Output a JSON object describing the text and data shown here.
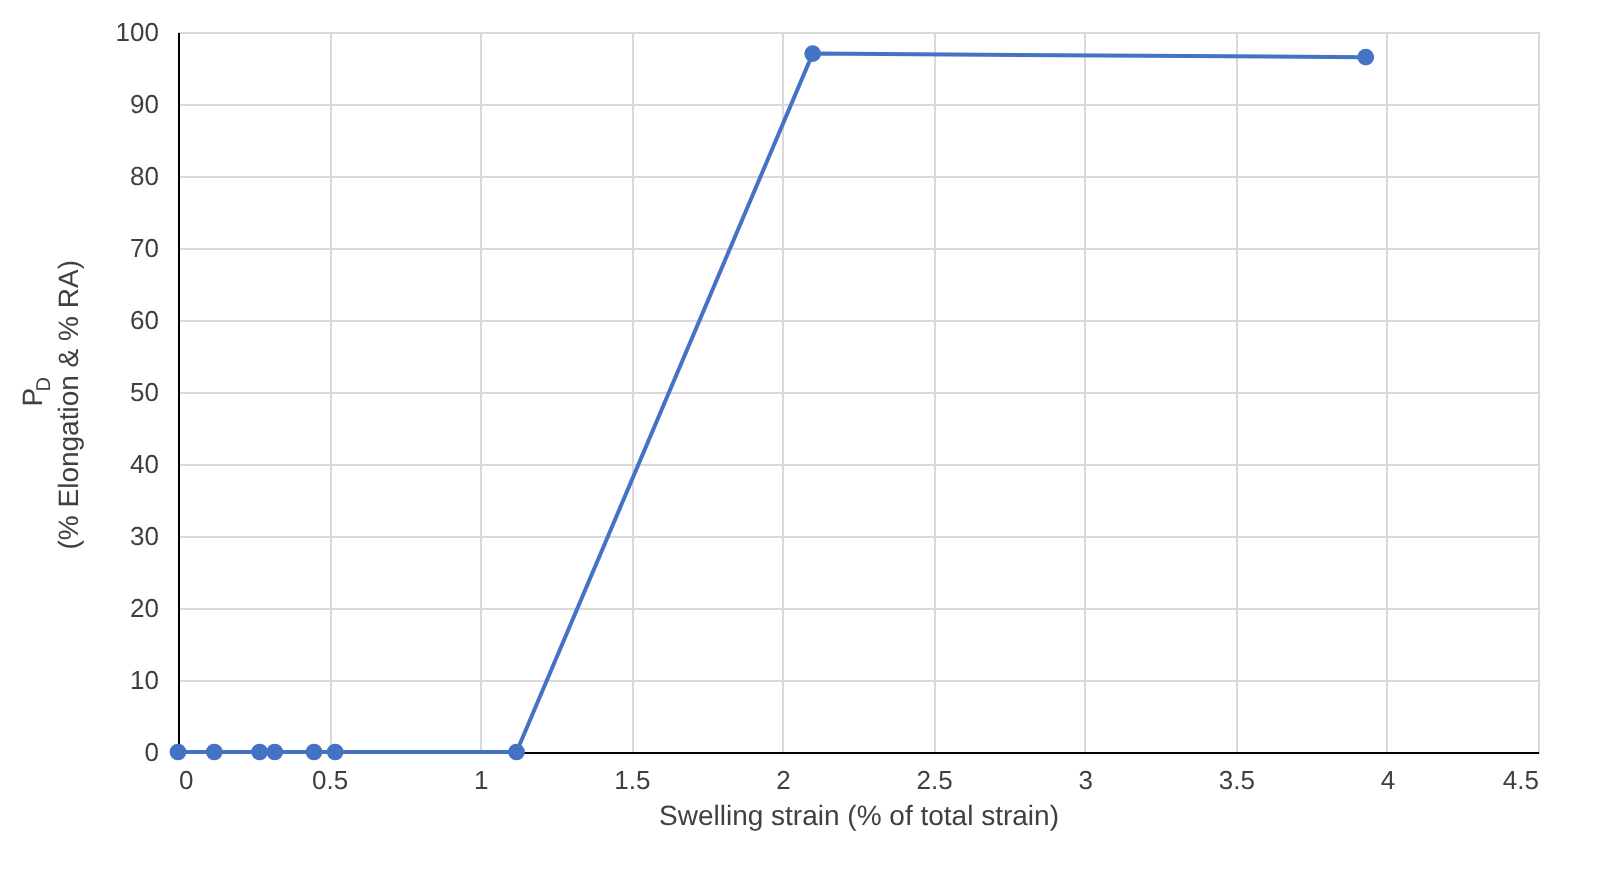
{
  "chart_data": {
    "type": "line",
    "xlabel": "Swelling strain (% of total strain)",
    "ylabel": "P$_{D}$\n(% Elongation & % RA)",
    "x": [
      0,
      0.12,
      0.27,
      0.32,
      0.45,
      0.52,
      1.12,
      2.1,
      3.93
    ],
    "series": [
      {
        "color": "#4472c4",
        "values": [
          0,
          0,
          0,
          0,
          0,
          0,
          0,
          97,
          96.5
        ]
      }
    ],
    "xlim": [
      0,
      4.5
    ],
    "xticks": [
      0,
      0.5,
      1,
      1.5,
      2,
      2.5,
      3,
      3.5,
      4,
      4.5
    ],
    "ylim": [
      0,
      100
    ],
    "yticks": [
      0,
      10,
      20,
      30,
      40,
      50,
      60,
      70,
      80,
      90,
      100
    ],
    "grid": true,
    "marker": "circle",
    "line_style": "solid"
  }
}
